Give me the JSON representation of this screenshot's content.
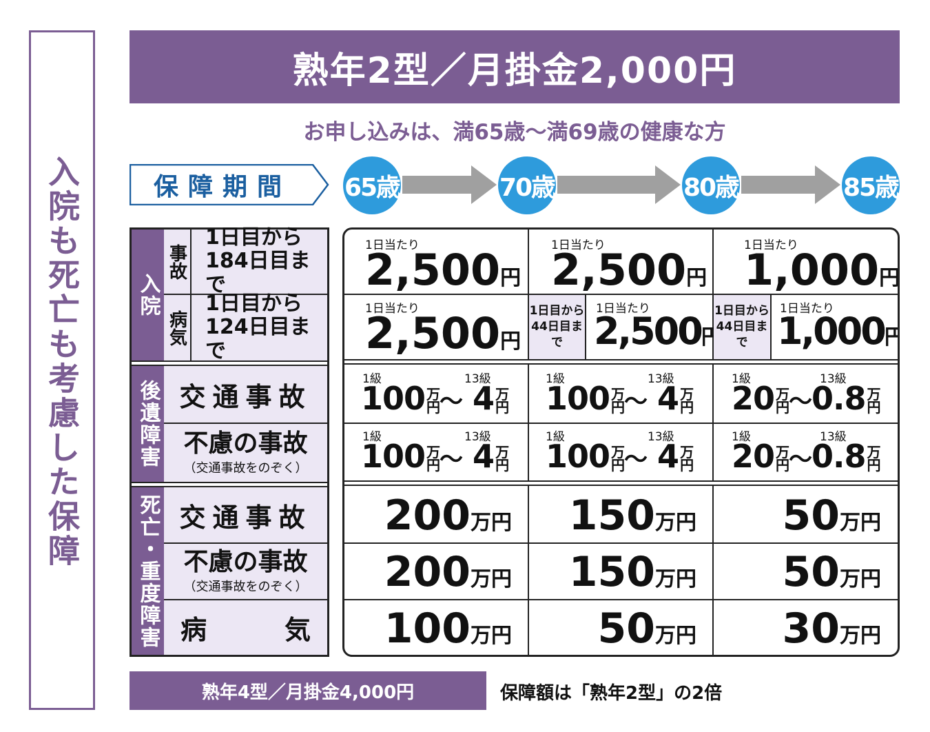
{
  "side_title": "入院も死亡も考慮した保障",
  "header": {
    "title": "熟年2型／月掛金2,000円"
  },
  "subtitle": "お申し込みは、満65歳～満69歳の健康な方",
  "period_label": "保障期間",
  "ages": [
    "65歳",
    "70歳",
    "80歳",
    "85歳"
  ],
  "colors": {
    "purple": "#7b5d93",
    "blue": "#2e9bdc",
    "light_purple": "#ece7f4",
    "arrow_gray": "#a0a0a0"
  },
  "left": {
    "hosp_cat": "入院",
    "accident_sub": "事故",
    "illness_sub": "病気",
    "accident_l1": "1日目から",
    "accident_l2": "184日目まで",
    "illness_l1": "1日目から",
    "illness_l2": "124日目まで",
    "disability_cat": "後遺障害",
    "death_cat": "死亡・重度障害",
    "traffic": "交通事故",
    "accident_other": "不慮の事故",
    "accident_other_note": "（交通事故をのぞく）",
    "illness_left": "病",
    "illness_right": "気"
  },
  "per_day": "1日当たり",
  "days_note_1": "1日目から",
  "days_note_2": "44日目まで",
  "hospital": {
    "accident": [
      "2,500",
      "2,500",
      "1,000"
    ],
    "illness": [
      "2,500",
      "2,500",
      "1,000"
    ],
    "yen": "円"
  },
  "grade_1": "1級",
  "grade_13": "13級",
  "disability": {
    "high": [
      "100",
      "100",
      "20"
    ],
    "low": [
      "4",
      "4",
      "0.8"
    ],
    "man": "万",
    "en": "円",
    "tilde": "～"
  },
  "death": {
    "traffic": [
      "200",
      "150",
      "50"
    ],
    "accident": [
      "200",
      "150",
      "50"
    ],
    "illness": [
      "100",
      "50",
      "30"
    ],
    "unit": "万円"
  },
  "footer": {
    "plan": "熟年4型／月掛金4,000円",
    "note": "保障額は「熟年2型」の2倍"
  }
}
